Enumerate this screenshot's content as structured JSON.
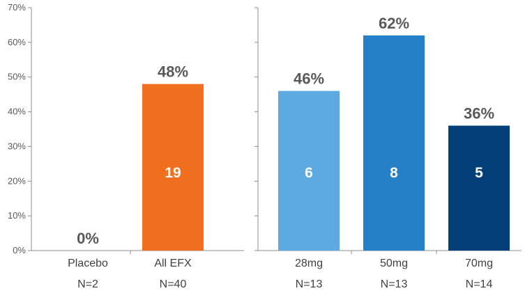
{
  "chart_data": [
    {
      "type": "bar",
      "categories": [
        "Placebo",
        "All EFX"
      ],
      "sublabels": [
        "N=2",
        "N=40"
      ],
      "values": [
        0,
        48
      ],
      "value_labels": [
        "0%",
        "48%"
      ],
      "counts": [
        null,
        19
      ],
      "colors": [
        "#ED7125",
        "#F07020"
      ],
      "ylim": [
        0,
        70
      ],
      "yticks": [
        0,
        10,
        20,
        30,
        40,
        50,
        60,
        70
      ],
      "ytick_labels": [
        "0%",
        "10%",
        "20%",
        "30%",
        "40%",
        "50%",
        "60%",
        "70%"
      ],
      "grid": false
    },
    {
      "type": "bar",
      "categories": [
        "28mg",
        "50mg",
        "70mg"
      ],
      "sublabels": [
        "N=13",
        "N=13",
        "N=14"
      ],
      "values": [
        46,
        62,
        36
      ],
      "value_labels": [
        "46%",
        "62%",
        "36%"
      ],
      "counts": [
        6,
        8,
        5
      ],
      "colors": [
        "#5DAAE0",
        "#2580C8",
        "#03407A"
      ],
      "ylim": [
        0,
        70
      ],
      "grid": false
    }
  ]
}
